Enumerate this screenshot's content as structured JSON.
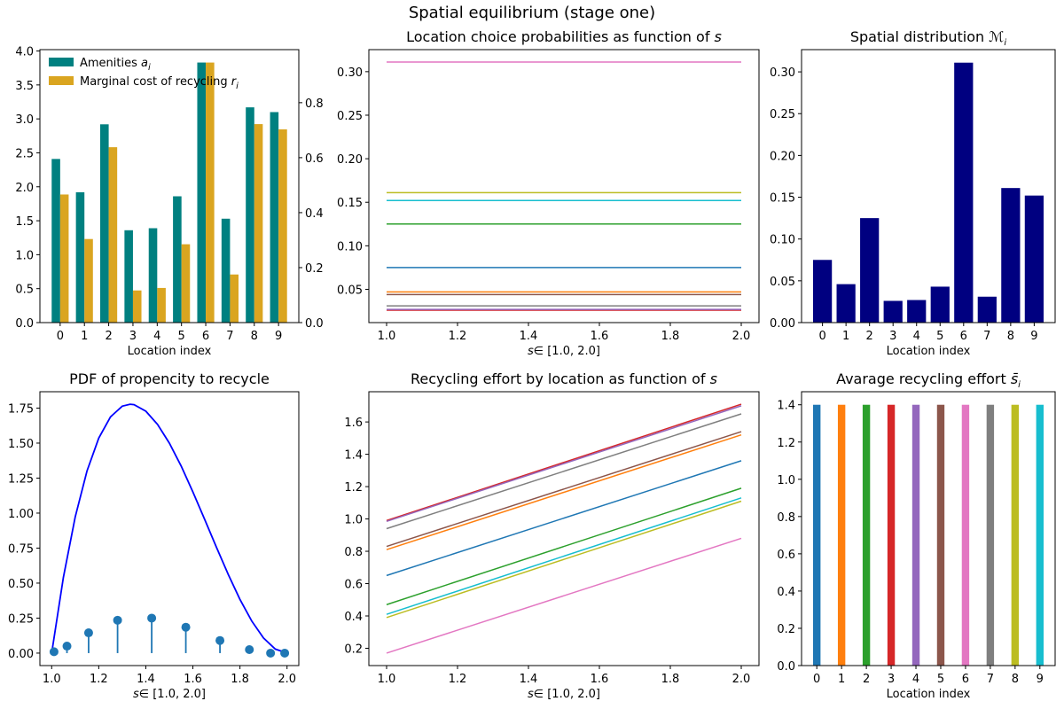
{
  "figure": {
    "suptitle": "Spatial equilibrium (stage one)"
  },
  "colors": {
    "tab10": [
      "#1f77b4",
      "#ff7f0e",
      "#2ca02c",
      "#d62728",
      "#9467bd",
      "#8c564b",
      "#e377c2",
      "#7f7f7f",
      "#bcbd22",
      "#17becf"
    ],
    "amenities": "#008080",
    "cost": "#daa520",
    "distribution": "#000080",
    "pdf_curve": "#0000ff",
    "stems": "#1f77b4"
  },
  "chart_data": [
    {
      "type": "bar",
      "title": "",
      "xlabel": "Location index",
      "categories": [
        "0",
        "1",
        "2",
        "3",
        "4",
        "5",
        "6",
        "7",
        "8",
        "9"
      ],
      "ylim_left": [
        0,
        4.02
      ],
      "ylim_right": [
        0,
        0.993
      ],
      "yticks_left": [
        "0.0",
        "0.5",
        "1.0",
        "1.5",
        "2.0",
        "2.5",
        "3.0",
        "3.5",
        "4.0"
      ],
      "yticks_right": [
        "0.0",
        "0.2",
        "0.4",
        "0.6",
        "0.8"
      ],
      "legend_placement": "upper-left",
      "series": [
        {
          "name": {
            "text": "Amenities ",
            "math": "a",
            "sub": "i"
          },
          "axis": "left",
          "values": [
            2.41,
            1.92,
            2.92,
            1.36,
            1.39,
            1.86,
            3.83,
            1.53,
            3.17,
            3.1
          ]
        },
        {
          "name": {
            "text": "Marginal cost of recycling ",
            "math": "r",
            "sub": "i"
          },
          "axis": "right",
          "values": [
            0.466,
            0.304,
            0.638,
            0.117,
            0.126,
            0.285,
            0.946,
            0.175,
            0.722,
            0.703
          ]
        }
      ]
    },
    {
      "type": "line",
      "title": {
        "text": "Location choice probabilities as function of ",
        "math": "s"
      },
      "xlabel": {
        "math": "s",
        "text": "∈ [1.0, 2.0]"
      },
      "x": [
        1.0,
        2.0
      ],
      "xticks": [
        "1.0",
        "1.2",
        "1.4",
        "1.6",
        "1.8",
        "2.0"
      ],
      "yticks": [
        "0.05",
        "0.10",
        "0.15",
        "0.20",
        "0.25",
        "0.30"
      ],
      "ylim": [
        0.0118,
        0.3253
      ],
      "series": [
        {
          "values": [
            0.075,
            0.075
          ]
        },
        {
          "values": [
            0.047,
            0.047
          ]
        },
        {
          "values": [
            0.125,
            0.125
          ]
        },
        {
          "values": [
            0.026,
            0.026
          ]
        },
        {
          "values": [
            0.027,
            0.027
          ]
        },
        {
          "values": [
            0.044,
            0.044
          ]
        },
        {
          "values": [
            0.311,
            0.311
          ]
        },
        {
          "values": [
            0.031,
            0.031
          ]
        },
        {
          "values": [
            0.161,
            0.161
          ]
        },
        {
          "values": [
            0.152,
            0.152
          ]
        }
      ]
    },
    {
      "type": "bar",
      "title": {
        "text": "Spatial distribution ",
        "math": "ℳ",
        "sub": "i"
      },
      "xlabel": "Location index",
      "categories": [
        "0",
        "1",
        "2",
        "3",
        "4",
        "5",
        "6",
        "7",
        "8",
        "9"
      ],
      "values": [
        0.075,
        0.046,
        0.125,
        0.026,
        0.027,
        0.043,
        0.311,
        0.031,
        0.161,
        0.152
      ],
      "yticks": [
        "0.00",
        "0.05",
        "0.10",
        "0.15",
        "0.20",
        "0.25",
        "0.30"
      ],
      "ylim": [
        0,
        0.3266
      ]
    },
    {
      "type": "line",
      "title": {
        "text": "PDF of propencity to recycle"
      },
      "xlabel": {
        "math": "s",
        "text": "∈ [1.0, 2.0]"
      },
      "xticks": [
        "1.0",
        "1.2",
        "1.4",
        "1.6",
        "1.8",
        "2.0"
      ],
      "yticks": [
        "0.00",
        "0.25",
        "0.50",
        "0.75",
        "1.00",
        "1.25",
        "1.50",
        "1.75"
      ],
      "ylim": [
        -0.089,
        1.867
      ],
      "curve": {
        "x": [
          1.0,
          1.05,
          1.1,
          1.15,
          1.2,
          1.25,
          1.3,
          1.333,
          1.35,
          1.4,
          1.45,
          1.5,
          1.55,
          1.6,
          1.65,
          1.7,
          1.75,
          1.8,
          1.85,
          1.9,
          1.95,
          2.0
        ],
        "y": [
          0,
          0.5415,
          0.972,
          1.3005,
          1.536,
          1.6875,
          1.764,
          1.778,
          1.7745,
          1.728,
          1.6335,
          1.5,
          1.3365,
          1.152,
          0.9555,
          0.756,
          0.5625,
          0.384,
          0.2295,
          0.108,
          0.0285,
          0
        ]
      },
      "stems": {
        "x": [
          1.01,
          1.065,
          1.157,
          1.28,
          1.425,
          1.57,
          1.715,
          1.84,
          1.93,
          1.99
        ],
        "y": [
          0.01,
          0.05,
          0.145,
          0.235,
          0.25,
          0.185,
          0.09,
          0.025,
          0.0,
          0.0
        ]
      }
    },
    {
      "type": "line",
      "title": {
        "text": "Recycling effort by location as function of ",
        "math": "s"
      },
      "xlabel": {
        "math": "s",
        "text": "∈ [1.0, 2.0]"
      },
      "x": [
        1.0,
        2.0
      ],
      "xticks": [
        "1.0",
        "1.2",
        "1.4",
        "1.6",
        "1.8",
        "2.0"
      ],
      "yticks": [
        "0.2",
        "0.4",
        "0.6",
        "0.8",
        "1.0",
        "1.2",
        "1.4",
        "1.6"
      ],
      "ylim": [
        0.093,
        1.787
      ],
      "series": [
        {
          "values": [
            0.65,
            1.36
          ]
        },
        {
          "values": [
            0.81,
            1.52
          ]
        },
        {
          "values": [
            0.47,
            1.19
          ]
        },
        {
          "values": [
            0.99,
            1.71
          ]
        },
        {
          "values": [
            0.985,
            1.7
          ]
        },
        {
          "values": [
            0.83,
            1.54
          ]
        },
        {
          "values": [
            0.17,
            0.88
          ]
        },
        {
          "values": [
            0.94,
            1.65
          ]
        },
        {
          "values": [
            0.39,
            1.11
          ]
        },
        {
          "values": [
            0.41,
            1.13
          ]
        }
      ]
    },
    {
      "type": "bar",
      "title": {
        "text": "Avarage recycling effort ",
        "math": "s̄",
        "sub": "i"
      },
      "xlabel": "Location index",
      "categories": [
        "0",
        "1",
        "2",
        "3",
        "4",
        "5",
        "6",
        "7",
        "8",
        "9"
      ],
      "values": [
        1.4,
        1.4,
        1.4,
        1.4,
        1.4,
        1.4,
        1.4,
        1.4,
        1.4,
        1.4
      ],
      "yticks": [
        "0.0",
        "0.2",
        "0.4",
        "0.6",
        "0.8",
        "1.0",
        "1.2",
        "1.4"
      ],
      "ylim": [
        0,
        1.47
      ]
    }
  ]
}
